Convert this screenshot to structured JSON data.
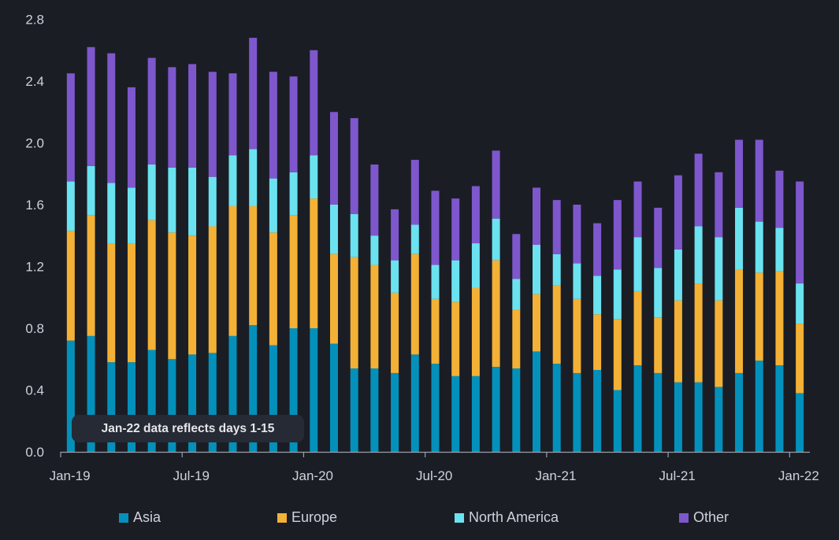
{
  "chart_data": {
    "type": "bar",
    "stacked": true,
    "title": "",
    "xlabel": "",
    "ylabel": "",
    "ylim": [
      0,
      2.8
    ],
    "yticks": [
      "0.0",
      "0.4",
      "0.8",
      "1.2",
      "1.6",
      "2.0",
      "2.4",
      "2.8"
    ],
    "ytick_values": [
      0,
      0.4,
      0.8,
      1.2,
      1.6,
      2.0,
      2.4,
      2.8
    ],
    "xtick_labels": [
      {
        "label": "Jan-19",
        "index": 0
      },
      {
        "label": "Jul-19",
        "index": 6
      },
      {
        "label": "Jan-20",
        "index": 12
      },
      {
        "label": "Jul-20",
        "index": 18
      },
      {
        "label": "Jan-21",
        "index": 24
      },
      {
        "label": "Jul-21",
        "index": 30
      },
      {
        "label": "Jan-22",
        "index": 36
      }
    ],
    "grid": false,
    "legend_position": "bottom",
    "categories": [
      "Jan-19",
      "Feb-19",
      "Mar-19",
      "Apr-19",
      "May-19",
      "Jun-19",
      "Jul-19",
      "Aug-19",
      "Sep-19",
      "Oct-19",
      "Nov-19",
      "Dec-19",
      "Jan-20",
      "Feb-20",
      "Mar-20",
      "Apr-20",
      "May-20",
      "Jun-20",
      "Jul-20",
      "Aug-20",
      "Sep-20",
      "Oct-20",
      "Nov-20",
      "Dec-20",
      "Jan-21",
      "Feb-21",
      "Mar-21",
      "Apr-21",
      "May-21",
      "Jun-21",
      "Jul-21",
      "Aug-21",
      "Sep-21",
      "Oct-21",
      "Nov-21",
      "Dec-21",
      "Jan-22"
    ],
    "series": [
      {
        "name": "Asia",
        "color": "#0391bb",
        "values": [
          0.72,
          0.75,
          0.58,
          0.58,
          0.66,
          0.6,
          0.63,
          0.64,
          0.75,
          0.82,
          0.69,
          0.8,
          0.8,
          0.7,
          0.54,
          0.54,
          0.51,
          0.63,
          0.57,
          0.49,
          0.49,
          0.55,
          0.54,
          0.65,
          0.57,
          0.51,
          0.53,
          0.4,
          0.56,
          0.51,
          0.45,
          0.45,
          0.42,
          0.51,
          0.59,
          0.56,
          0.38
        ]
      },
      {
        "name": "Europe",
        "color": "#f3b136",
        "values": [
          0.71,
          0.78,
          0.77,
          0.77,
          0.84,
          0.82,
          0.77,
          0.82,
          0.84,
          0.77,
          0.73,
          0.73,
          0.84,
          0.58,
          0.72,
          0.67,
          0.52,
          0.65,
          0.42,
          0.48,
          0.57,
          0.69,
          0.38,
          0.37,
          0.51,
          0.48,
          0.36,
          0.46,
          0.48,
          0.36,
          0.53,
          0.64,
          0.56,
          0.67,
          0.57,
          0.61,
          0.45
        ]
      },
      {
        "name": "North America",
        "color": "#6be2ef",
        "values": [
          0.32,
          0.32,
          0.39,
          0.36,
          0.36,
          0.42,
          0.44,
          0.32,
          0.33,
          0.37,
          0.35,
          0.28,
          0.28,
          0.32,
          0.28,
          0.19,
          0.21,
          0.19,
          0.22,
          0.27,
          0.29,
          0.27,
          0.2,
          0.32,
          0.2,
          0.23,
          0.25,
          0.32,
          0.35,
          0.32,
          0.33,
          0.37,
          0.41,
          0.4,
          0.33,
          0.28,
          0.26
        ]
      },
      {
        "name": "Other",
        "color": "#7e57cd",
        "values": [
          0.7,
          0.77,
          0.84,
          0.65,
          0.69,
          0.65,
          0.67,
          0.68,
          0.53,
          0.72,
          0.69,
          0.62,
          0.68,
          0.6,
          0.62,
          0.46,
          0.33,
          0.42,
          0.48,
          0.4,
          0.37,
          0.44,
          0.29,
          0.37,
          0.35,
          0.38,
          0.34,
          0.45,
          0.36,
          0.39,
          0.48,
          0.47,
          0.42,
          0.44,
          0.53,
          0.37,
          0.66
        ]
      }
    ],
    "annotations": [
      "Jan-22 data reflects days 1-15"
    ]
  },
  "note": {
    "text": "Jan-22 data reflects days 1-15"
  },
  "colors": {
    "background": "#1b1d25",
    "axis": "#9aa0ab",
    "text": "#cfd2da"
  }
}
